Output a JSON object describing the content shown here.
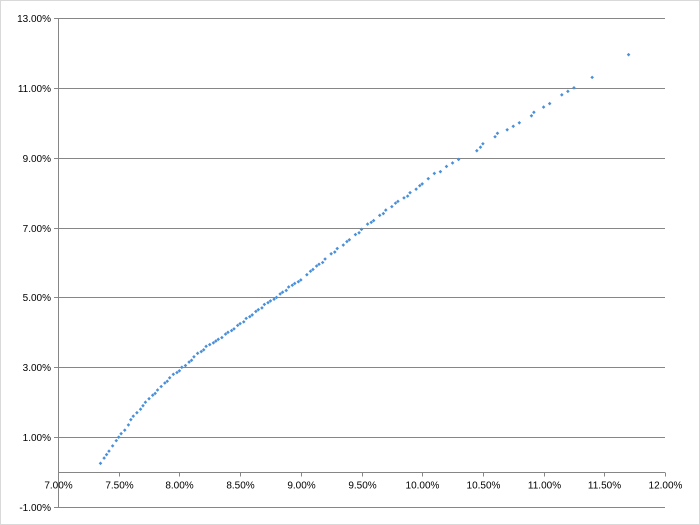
{
  "chart_data": {
    "type": "scatter",
    "title": "",
    "xlabel": "",
    "ylabel": "",
    "xlim": [
      0.07,
      0.12
    ],
    "ylim": [
      -0.01,
      0.13
    ],
    "x_ticks": [
      0.07,
      0.075,
      0.08,
      0.085,
      0.09,
      0.095,
      0.1,
      0.105,
      0.11,
      0.115,
      0.12
    ],
    "x_tick_labels": [
      "7.00%",
      "7.50%",
      "8.00%",
      "8.50%",
      "9.00%",
      "9.50%",
      "10.00%",
      "10.50%",
      "11.00%",
      "11.50%",
      "12.00%"
    ],
    "y_ticks": [
      -0.01,
      0.01,
      0.03,
      0.05,
      0.07,
      0.09,
      0.11,
      0.13
    ],
    "y_tick_labels": [
      "-1.00%",
      "1.00%",
      "3.00%",
      "5.00%",
      "7.00%",
      "9.00%",
      "11.00%",
      "13.00%"
    ],
    "grid": "horizontal",
    "legend": "none",
    "point_color": "#4A90D9",
    "gridline_color": "#868686",
    "axis_color": "#868686",
    "series": [
      {
        "x": [
          0.0735,
          0.0738,
          0.074,
          0.0742,
          0.0745,
          0.0748,
          0.075,
          0.0752,
          0.0755,
          0.0758,
          0.076,
          0.0762,
          0.0765,
          0.0768,
          0.077,
          0.0772,
          0.0775,
          0.0778,
          0.078,
          0.0782,
          0.0785,
          0.0788,
          0.079,
          0.0792,
          0.0795,
          0.0798,
          0.08,
          0.0802,
          0.0805,
          0.0808,
          0.081,
          0.0812,
          0.0815,
          0.0818,
          0.082,
          0.0822,
          0.0825,
          0.0828,
          0.083,
          0.0832,
          0.0835,
          0.0838,
          0.084,
          0.0843,
          0.0845,
          0.0848,
          0.085,
          0.0853,
          0.0855,
          0.0858,
          0.086,
          0.0863,
          0.0865,
          0.0868,
          0.087,
          0.0873,
          0.0875,
          0.0878,
          0.088,
          0.0883,
          0.0885,
          0.0888,
          0.089,
          0.0893,
          0.0895,
          0.0898,
          0.09,
          0.0905,
          0.0908,
          0.091,
          0.0913,
          0.0915,
          0.0918,
          0.092,
          0.0925,
          0.0928,
          0.093,
          0.0935,
          0.0938,
          0.094,
          0.0945,
          0.0948,
          0.095,
          0.0955,
          0.0958,
          0.096,
          0.0965,
          0.0968,
          0.097,
          0.0975,
          0.0978,
          0.098,
          0.0985,
          0.0988,
          0.099,
          0.0995,
          0.0998,
          0.1,
          0.1005,
          0.101,
          0.1015,
          0.102,
          0.1025,
          0.103,
          0.1045,
          0.1048,
          0.105,
          0.106,
          0.1062,
          0.107,
          0.1075,
          0.108,
          0.109,
          0.1092,
          0.11,
          0.1105,
          0.1115,
          0.112,
          0.1125,
          0.114,
          0.117
        ],
        "y": [
          0.0025,
          0.004,
          0.005,
          0.006,
          0.0075,
          0.009,
          0.01,
          0.011,
          0.012,
          0.0135,
          0.015,
          0.016,
          0.017,
          0.018,
          0.019,
          0.02,
          0.021,
          0.022,
          0.0225,
          0.0235,
          0.0245,
          0.0255,
          0.026,
          0.027,
          0.028,
          0.0285,
          0.029,
          0.03,
          0.0305,
          0.0315,
          0.032,
          0.033,
          0.034,
          0.0345,
          0.035,
          0.036,
          0.0365,
          0.037,
          0.0375,
          0.038,
          0.0385,
          0.0395,
          0.04,
          0.0405,
          0.041,
          0.042,
          0.0425,
          0.043,
          0.044,
          0.0445,
          0.045,
          0.046,
          0.0465,
          0.047,
          0.048,
          0.0485,
          0.049,
          0.0495,
          0.05,
          0.051,
          0.0515,
          0.052,
          0.053,
          0.0535,
          0.054,
          0.0545,
          0.055,
          0.0565,
          0.0575,
          0.058,
          0.059,
          0.0595,
          0.06,
          0.061,
          0.0625,
          0.063,
          0.064,
          0.065,
          0.066,
          0.0665,
          0.068,
          0.0685,
          0.0695,
          0.071,
          0.0715,
          0.072,
          0.0735,
          0.074,
          0.075,
          0.076,
          0.077,
          0.0775,
          0.0785,
          0.079,
          0.08,
          0.081,
          0.082,
          0.0825,
          0.084,
          0.0855,
          0.086,
          0.0875,
          0.0885,
          0.0895,
          0.092,
          0.093,
          0.094,
          0.096,
          0.097,
          0.098,
          0.099,
          0.1,
          0.102,
          0.103,
          0.1045,
          0.1055,
          0.108,
          0.109,
          0.11,
          0.113,
          0.1195
        ]
      }
    ]
  }
}
